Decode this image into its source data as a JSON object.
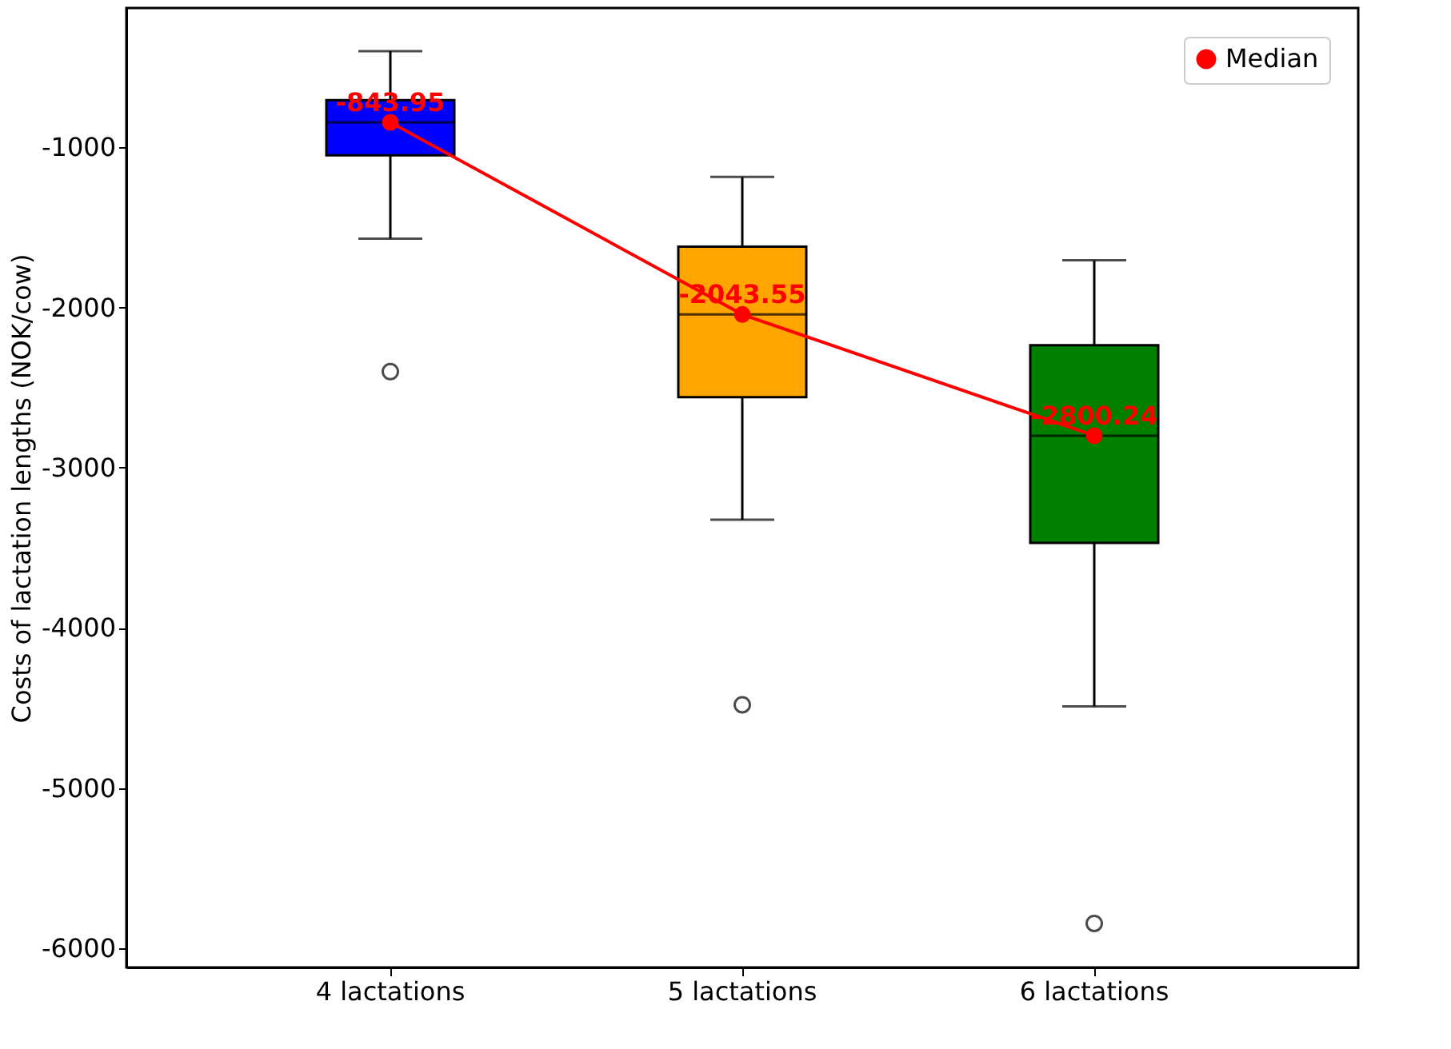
{
  "chart_data": {
    "type": "box",
    "ylabel": "Costs of lactation lengths (NOK/cow)",
    "categories": [
      "4 lactations",
      "5 lactations",
      "6 lactations"
    ],
    "colors": [
      "#0000ff",
      "#ffa500",
      "#008000"
    ],
    "boxes": [
      {
        "low": -1570,
        "q1": -1050,
        "median": -843.95,
        "q3": -705,
        "high": -400,
        "outliers": [
          -2400
        ]
      },
      {
        "low": -3325,
        "q1": -2560,
        "median": -2043.55,
        "q3": -1620,
        "high": -1185,
        "outliers": [
          -4480
        ]
      },
      {
        "low": -4490,
        "q1": -3470,
        "median": -2800.24,
        "q3": -2235,
        "high": -1705,
        "outliers": [
          -5845
        ]
      }
    ],
    "series": [
      {
        "type": "line",
        "name": "Median",
        "color": "#ff0000",
        "values": [
          -843.95,
          -2043.55,
          -2800.24
        ],
        "value_labels": [
          "-843.95",
          "-2043.55",
          "-2800.24"
        ]
      }
    ],
    "marker": "circle",
    "ylim": [
      -6120,
      -130
    ],
    "yticks": [
      -6000,
      -5000,
      -4000,
      -3000,
      -2000,
      -1000
    ],
    "grid": false,
    "legend": "top right"
  }
}
